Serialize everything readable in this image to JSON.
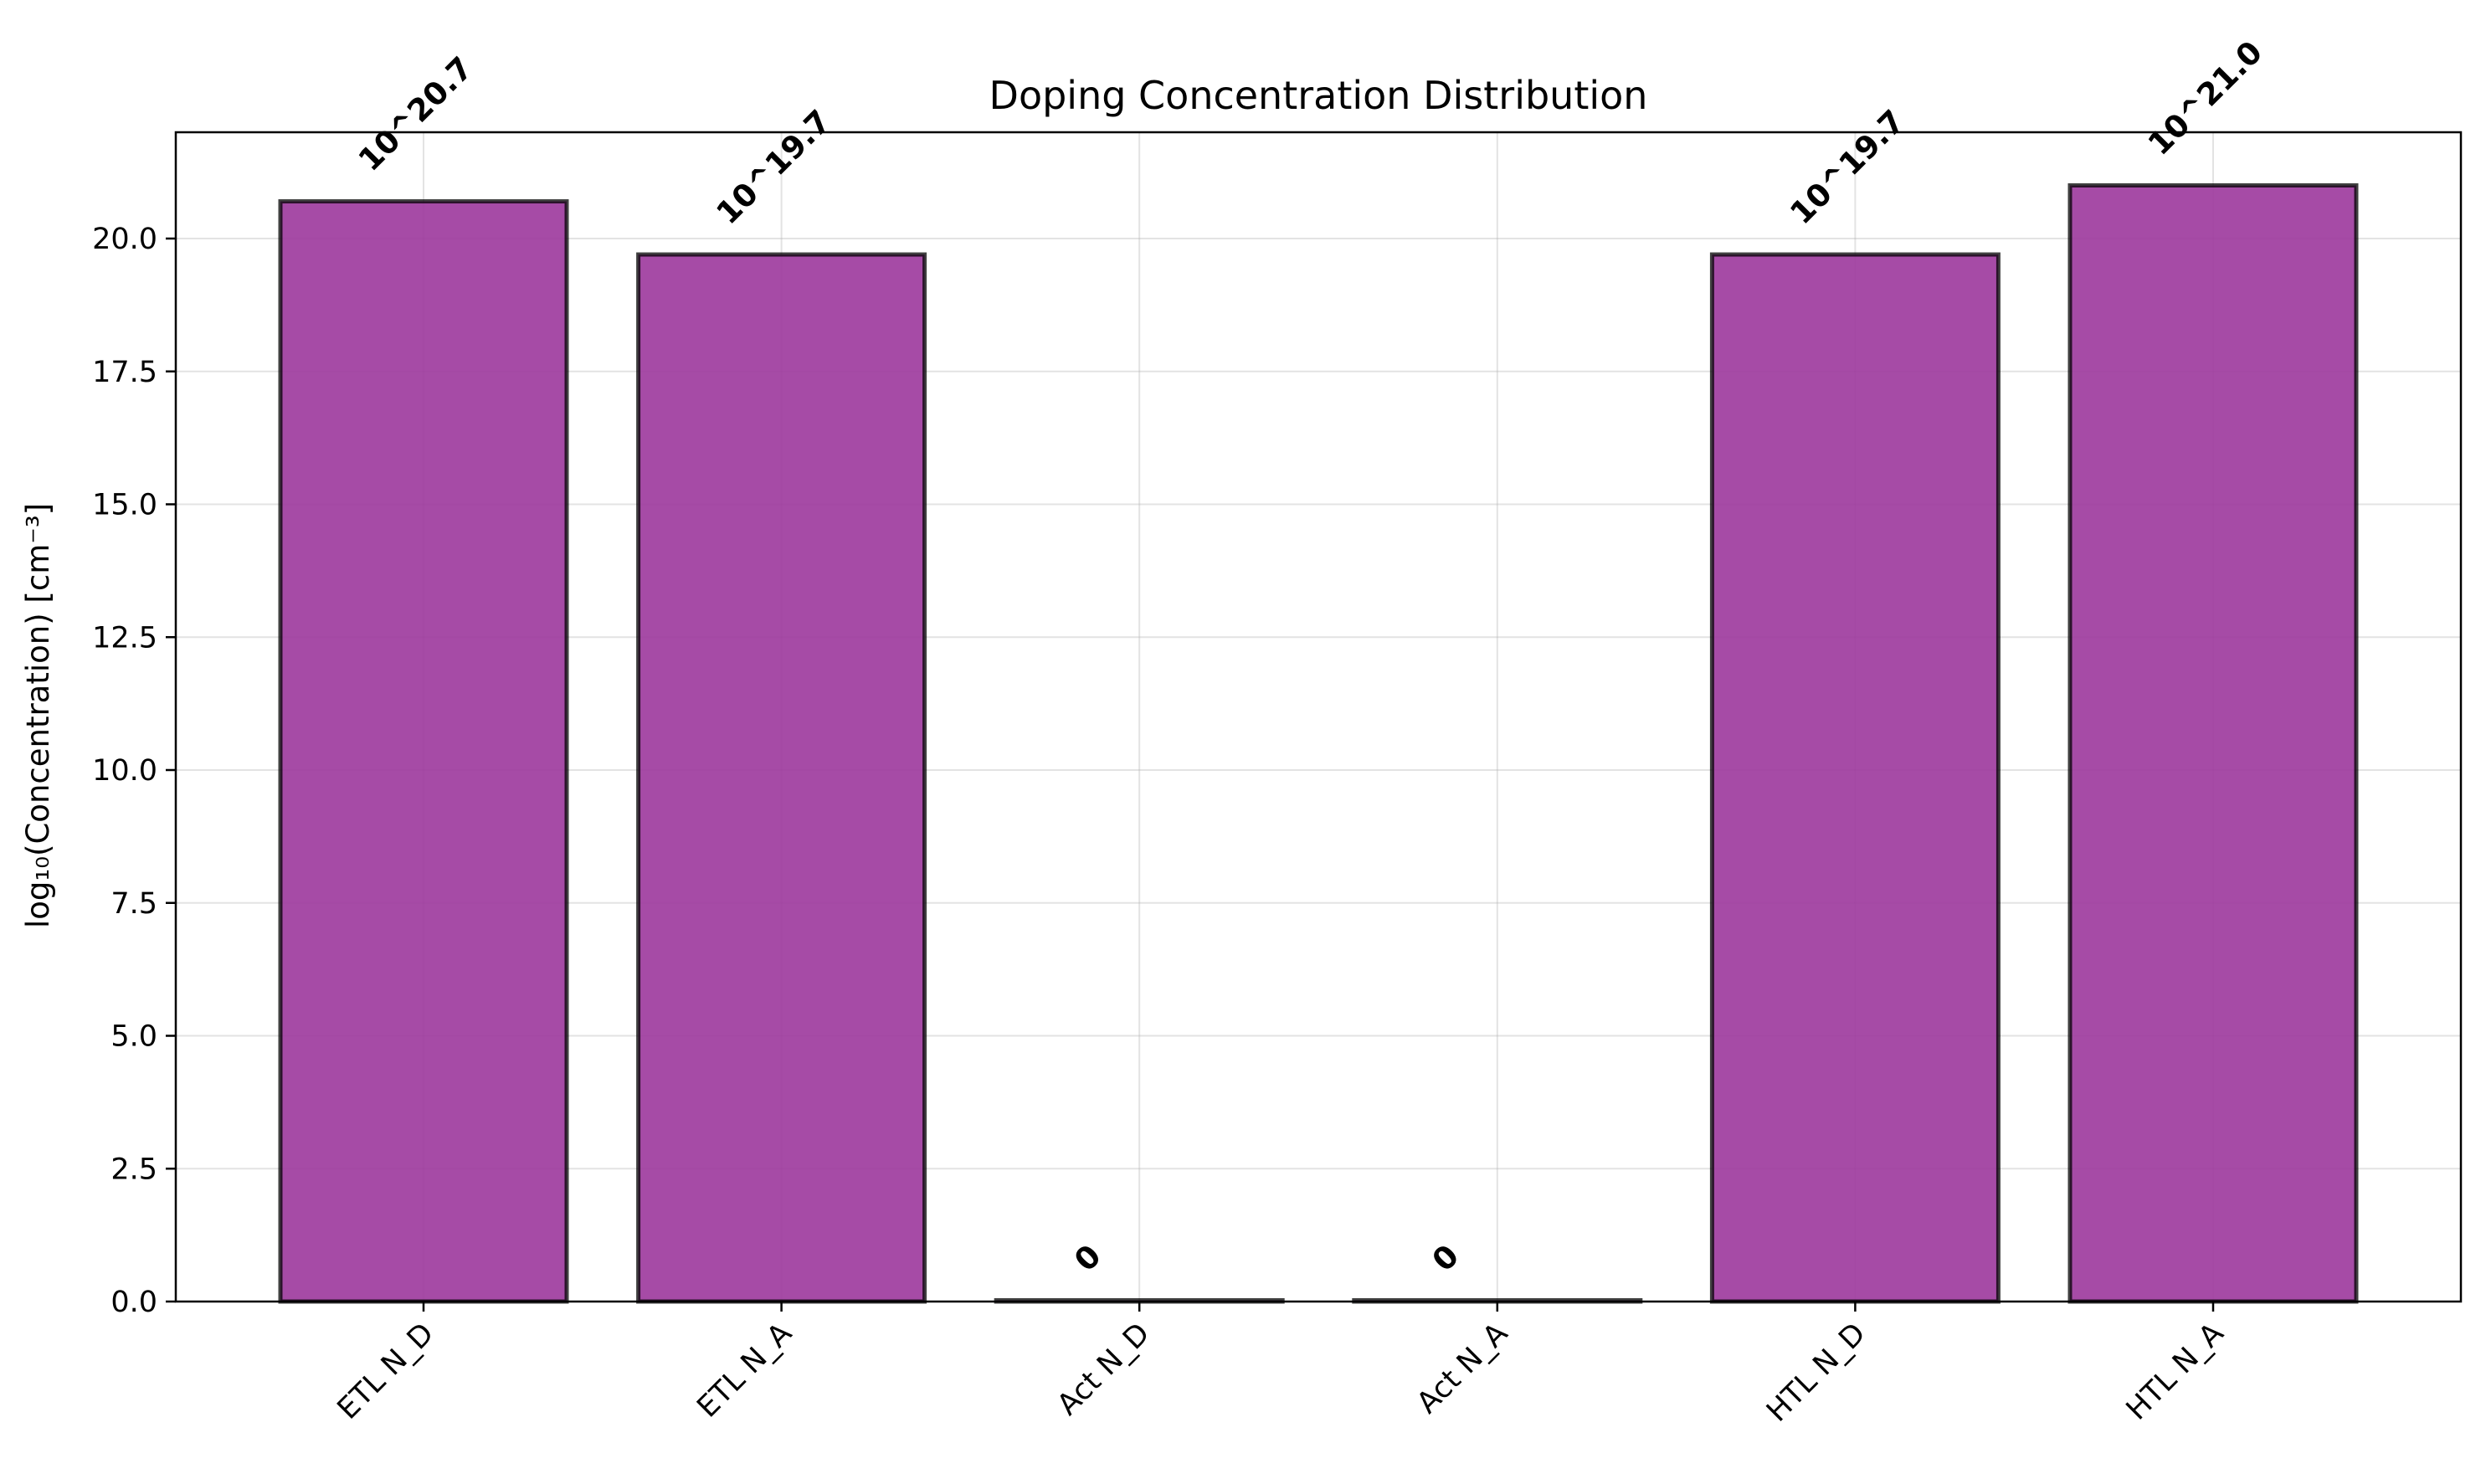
{
  "chart_data": {
    "type": "bar",
    "title": "Doping Concentration Distribution",
    "xlabel": "",
    "ylabel": "log₁₀(Concentration) [cm⁻³]",
    "categories": [
      "ETL N_D",
      "ETL N_A",
      "Act N_D",
      "Act N_A",
      "HTL N_D",
      "HTL N_A"
    ],
    "values": [
      20.7,
      19.7,
      0,
      0,
      19.7,
      21.0
    ],
    "bar_labels": [
      "10^20.7",
      "10^19.7",
      "0",
      "0",
      "10^19.7",
      "10^21.0"
    ],
    "ylim": [
      0,
      22.0
    ],
    "yticks": [
      0.0,
      2.5,
      5.0,
      7.5,
      10.0,
      12.5,
      15.0,
      17.5,
      20.0
    ],
    "ytick_labels": [
      "0.0",
      "2.5",
      "5.0",
      "7.5",
      "10.0",
      "12.5",
      "15.0",
      "17.5",
      "20.0"
    ],
    "grid": true,
    "legend": "none",
    "colors": {
      "bar_fill": "#9c379c",
      "bar_edge": "#000000"
    }
  }
}
